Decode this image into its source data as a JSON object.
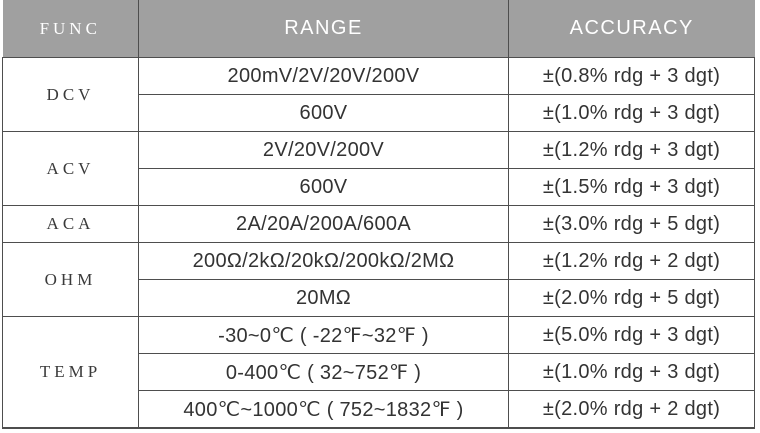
{
  "table": {
    "headers": {
      "func": "FUNC",
      "range": "RANGE",
      "accuracy": "ACCURACY"
    },
    "groups": [
      {
        "func": "DCV",
        "rows": [
          {
            "range": "200mV/2V/20V/200V",
            "accuracy": "±(0.8% rdg + 3 dgt)"
          },
          {
            "range": "600V",
            "accuracy": "±(1.0% rdg + 3 dgt)"
          }
        ]
      },
      {
        "func": "ACV",
        "rows": [
          {
            "range": "2V/20V/200V",
            "accuracy": "±(1.2% rdg + 3 dgt)"
          },
          {
            "range": "600V",
            "accuracy": "±(1.5% rdg + 3 dgt)"
          }
        ]
      },
      {
        "func": "ACA",
        "rows": [
          {
            "range": "2A/20A/200A/600A",
            "accuracy": "±(3.0% rdg + 5 dgt)"
          }
        ]
      },
      {
        "func": "OHM",
        "rows": [
          {
            "range": "200Ω/2kΩ/20kΩ/200kΩ/2MΩ",
            "accuracy": "±(1.2% rdg + 2 dgt)"
          },
          {
            "range": "20MΩ",
            "accuracy": "±(2.0% rdg + 5 dgt)"
          }
        ]
      },
      {
        "func": "TEMP",
        "rows": [
          {
            "range": "-30~0℃ ( -22℉~32℉ )",
            "accuracy": "±(5.0% rdg + 3 dgt)"
          },
          {
            "range": "0-400℃ ( 32~752℉ )",
            "accuracy": "±(1.0% rdg + 3 dgt)"
          },
          {
            "range": "400℃~1000℃ ( 752~1832℉ )",
            "accuracy": "±(2.0% rdg + 2 dgt)"
          }
        ]
      }
    ]
  },
  "colors": {
    "header_bg": "#a0a0a0",
    "header_text": "#ffffff",
    "body_text": "#333333",
    "border": "#4e4e4e",
    "background": "#ffffff"
  }
}
